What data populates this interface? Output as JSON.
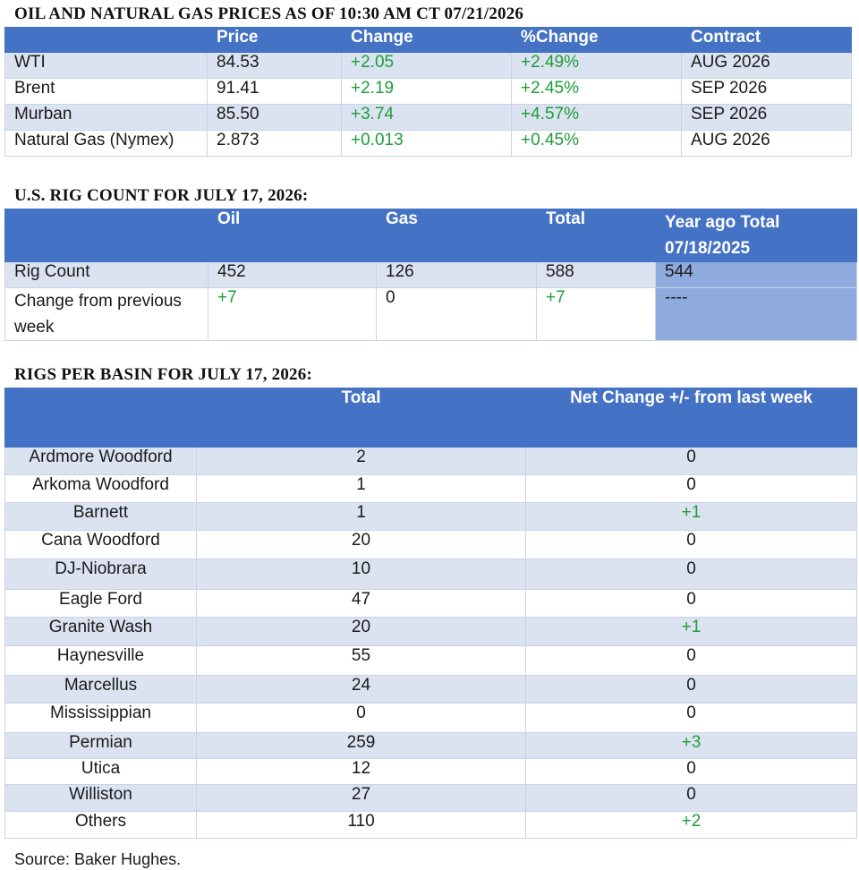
{
  "prices": {
    "heading": "OIL AND NATURAL GAS PRICES AS OF 10:30 AM CT 07/21/2026",
    "headers": [
      "",
      "Price",
      "Change",
      "%Change",
      "Contract"
    ],
    "rows": [
      [
        "WTI",
        "84.53",
        "+2.05",
        "+2.49%",
        "AUG 2026"
      ],
      [
        "Brent",
        "91.41",
        "+2.19",
        "+2.45%",
        "SEP 2026"
      ],
      [
        "Murban",
        "85.50",
        "+3.74",
        "+4.57%",
        "SEP 2026"
      ],
      [
        "Natural Gas (Nymex)",
        "2.873",
        "+0.013",
        "+0.45%",
        "AUG 2026"
      ]
    ]
  },
  "rigcount": {
    "heading": "U.S. RIG COUNT FOR JULY 17, 2026:",
    "headers": [
      "",
      "Oil",
      "Gas",
      "Total",
      "Year ago Total 07/18/2025"
    ],
    "rows": [
      [
        "Rig Count",
        "452",
        "126",
        "588",
        "544"
      ],
      [
        "Change from previous week",
        "+7",
        "0",
        "+7",
        "----"
      ]
    ]
  },
  "basins": {
    "heading": "RIGS PER BASIN FOR JULY 17, 2026:",
    "headers": [
      "",
      "Total",
      "Net Change +/- from last week"
    ],
    "rows": [
      [
        "Ardmore Woodford",
        "2",
        "0"
      ],
      [
        "Arkoma Woodford",
        "1",
        "0"
      ],
      [
        "Barnett",
        "1",
        "+1"
      ],
      [
        "Cana Woodford",
        "20",
        "0"
      ],
      [
        "DJ-Niobrara",
        "10",
        "0"
      ],
      [
        "Eagle Ford",
        "47",
        "0"
      ],
      [
        "Granite Wash",
        "20",
        "+1"
      ],
      [
        "Haynesville",
        "55",
        "0"
      ],
      [
        "Marcellus",
        "24",
        "0"
      ],
      [
        "Mississippian",
        "0",
        "0"
      ],
      [
        "Permian",
        "259",
        "+3"
      ],
      [
        "Utica",
        "12",
        "0"
      ],
      [
        "Williston",
        "27",
        "0"
      ],
      [
        "Others",
        "110",
        "+2"
      ]
    ]
  },
  "source": "Source: Baker Hughes.",
  "colors": {
    "header": "#4472c4",
    "stripe": "#dbe3f1",
    "positive": "#1f9d3a",
    "yearago": "#8faadc"
  }
}
